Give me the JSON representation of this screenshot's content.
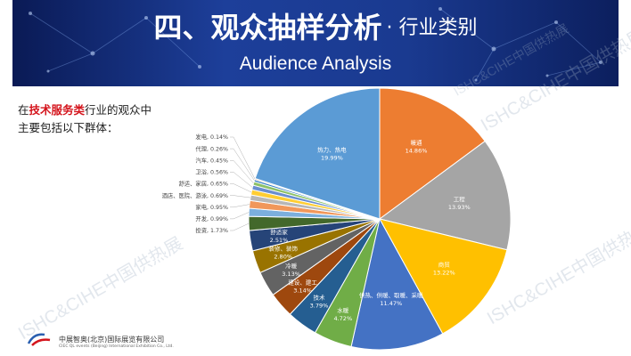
{
  "header": {
    "title": "四、观众抽样分析",
    "subtitle": "· 行业类别",
    "english_title": "Audience Analysis"
  },
  "intro": {
    "prefix": "在",
    "highlight": "技术服务类",
    "suffix": "行业的观众中",
    "line2": "主要包括以下群体："
  },
  "watermarks": {
    "text1": "ISHC&CIHE中国供热展",
    "text2": "ISHC&CIHE中国供热展",
    "text3": "ISHC&CIHE中国供热展",
    "text4": "ISHC&CIHE中国供热展"
  },
  "footer": {
    "company": "中展智奥(北京)国际展览有限公司",
    "company_en": "CIEC QL events (Beijing) International Exhibition Co., Ltd."
  },
  "colors": {
    "banner_dark": "#0a1a55",
    "banner_mid": "#1d3f9a",
    "highlight": "#d4141c"
  },
  "chart_data": {
    "type": "pie",
    "title": "",
    "start": "top",
    "direction": "clockwise",
    "slices": [
      {
        "label": "暖通",
        "pct": "14.86%",
        "value": 14.86,
        "color": "#ED7D31",
        "inside": true
      },
      {
        "label": "工程",
        "pct": "13.93%",
        "value": 13.93,
        "color": "#A5A5A5",
        "inside": true
      },
      {
        "label": "商贸",
        "pct": "13.22%",
        "value": 13.22,
        "color": "#FFC000",
        "inside": true
      },
      {
        "label": "供热、供暖、取暖、采暖",
        "pct": "11.47%",
        "value": 11.47,
        "color": "#4472C4",
        "inside": true
      },
      {
        "label": "水暖",
        "pct": "4.72%",
        "value": 4.72,
        "color": "#70AD47",
        "inside": true
      },
      {
        "label": "技术",
        "pct": "3.79%",
        "value": 3.79,
        "color": "#255E91",
        "inside": true
      },
      {
        "label": "建设、建工",
        "pct": "3.14%",
        "value": 3.14,
        "color": "#9E480E",
        "inside": true
      },
      {
        "label": "冷暖",
        "pct": "3.13%",
        "value": 3.13,
        "color": "#636363",
        "inside": true
      },
      {
        "label": "装修、装饰",
        "pct": "2.80%",
        "value": 2.8,
        "color": "#997300",
        "inside": true
      },
      {
        "label": "舒适家",
        "pct": "2.51%",
        "value": 2.51,
        "color": "#264478",
        "inside": true
      },
      {
        "label": "投资",
        "pct": "1.73%",
        "value": 1.73,
        "color": "#43682B",
        "inside": false
      },
      {
        "label": "开发",
        "pct": "0.99%",
        "value": 0.99,
        "color": "#7CAFDD",
        "inside": false
      },
      {
        "label": "家电",
        "pct": "0.95%",
        "value": 0.95,
        "color": "#F1975A",
        "inside": false
      },
      {
        "label": "酒店、医院、游泳",
        "pct": "0.69%",
        "value": 0.69,
        "color": "#B7B7B7",
        "inside": false
      },
      {
        "label": "舒适、家居",
        "pct": "0.65%",
        "value": 0.65,
        "color": "#FFCD33",
        "inside": false
      },
      {
        "label": "卫浴",
        "pct": "0.56%",
        "value": 0.56,
        "color": "#698ED0",
        "inside": false
      },
      {
        "label": "汽车",
        "pct": "0.45%",
        "value": 0.45,
        "color": "#8CC168",
        "inside": false
      },
      {
        "label": "代理",
        "pct": "0.26%",
        "value": 0.26,
        "color": "#327DC2",
        "inside": false
      },
      {
        "label": "发电",
        "pct": "0.14%",
        "value": 0.14,
        "color": "#D26012",
        "inside": false
      },
      {
        "label": "热力、热电",
        "pct": "19.99%",
        "value": 19.99,
        "color": "#5B9BD5",
        "inside": true
      }
    ]
  }
}
